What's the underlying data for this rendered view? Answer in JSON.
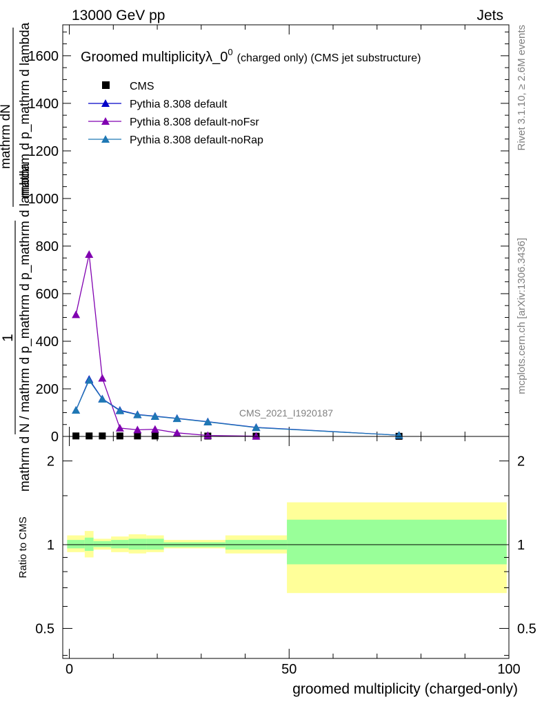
{
  "header": {
    "left": "13000 GeV pp",
    "right": "Jets"
  },
  "side_text": {
    "rivet": "Rivet 3.1.10, ≥ 2.6M events",
    "mcplots": "mcplots.cern.ch [arXiv:1306.3436]"
  },
  "chart_data": [
    {
      "type": "line",
      "title_main": "Groomed multiplicityλ_0",
      "title_sup": "0",
      "title_tail": "(charged only) (CMS jet substructure)",
      "ylabel_top": "1",
      "ylabel_frac_num": "mathrm dN",
      "ylabel_frac_den": "mathrm d p_mathrm d lambda",
      "ylabel_bottom": "mathrm d N / mathrm d p_mathrm d p_mathrm d lambda",
      "watermark": "CMS_2021_I1920187",
      "xlim": [
        -1.5,
        100
      ],
      "ylim": [
        0,
        1730
      ],
      "yticks": [
        0,
        200,
        400,
        600,
        800,
        1000,
        1200,
        1400,
        1600
      ],
      "yticklabels": [
        "0",
        "200",
        "400",
        "600",
        "800",
        "1000",
        "1200",
        "1400",
        "1600"
      ],
      "legend_position": "top-left",
      "series": [
        {
          "name": "CMS",
          "color": "#000000",
          "marker": "square",
          "x": [
            1.5,
            4.5,
            7.5,
            11.5,
            15.5,
            19.5,
            31.5,
            42.5,
            75
          ],
          "y": [
            2,
            2,
            2,
            2,
            2,
            2,
            1.5,
            1,
            0.5
          ]
        },
        {
          "name": "Pythia 8.308 default",
          "color": "#0000c8",
          "marker": "triangle",
          "x": [
            1.5,
            4.5,
            7.5,
            11.5,
            15.5,
            19.5,
            24.5,
            31.5,
            42.5,
            75
          ],
          "y": [
            110,
            240,
            158,
            110,
            92,
            85,
            76,
            62,
            38,
            5
          ]
        },
        {
          "name": "Pythia 8.308 default-noFsr",
          "color": "#8000b0",
          "marker": "triangle",
          "x": [
            1.5,
            4.5,
            7.5,
            11.5,
            15.5,
            19.5,
            24.5,
            31.5,
            42.5
          ],
          "y": [
            512,
            765,
            245,
            35,
            28,
            30,
            15,
            4,
            1
          ]
        },
        {
          "name": "Pythia 8.308 default-noRap",
          "color": "#1f78b4",
          "marker": "triangle",
          "x": [
            1.5,
            4.5,
            7.5,
            11.5,
            15.5,
            19.5,
            24.5,
            31.5,
            42.5,
            75
          ],
          "y": [
            110,
            236,
            157,
            108,
            91,
            84,
            75,
            61,
            37,
            5
          ]
        }
      ]
    },
    {
      "type": "area",
      "ylabel": "Ratio to CMS",
      "xlabel": "groomed multiplicity (charged-only)",
      "xlim": [
        -1.5,
        100
      ],
      "ylim": [
        0.39,
        2.45
      ],
      "log_y": true,
      "yticks": [
        0.5,
        1,
        2
      ],
      "yticklabels": [
        "0.5",
        "1",
        "2"
      ],
      "xticks": [
        0,
        50,
        100
      ],
      "xticklabels": [
        "0",
        "50",
        "100"
      ],
      "reference_line": 1,
      "bands": [
        {
          "x0": -0.5,
          "x1": 3.5,
          "inner": [
            0.97,
            1.04
          ],
          "outer": [
            0.94,
            1.08
          ]
        },
        {
          "x0": 3.5,
          "x1": 5.5,
          "inner": [
            0.95,
            1.06
          ],
          "outer": [
            0.9,
            1.12
          ]
        },
        {
          "x0": 5.5,
          "x1": 9.5,
          "inner": [
            0.98,
            1.03
          ],
          "outer": [
            0.96,
            1.05
          ]
        },
        {
          "x0": 9.5,
          "x1": 13.5,
          "inner": [
            0.97,
            1.04
          ],
          "outer": [
            0.94,
            1.07
          ]
        },
        {
          "x0": 13.5,
          "x1": 17.5,
          "inner": [
            0.96,
            1.05
          ],
          "outer": [
            0.93,
            1.09
          ]
        },
        {
          "x0": 17.5,
          "x1": 21.5,
          "inner": [
            0.96,
            1.05
          ],
          "outer": [
            0.94,
            1.08
          ]
        },
        {
          "x0": 21.5,
          "x1": 35.5,
          "inner": [
            0.98,
            1.02
          ],
          "outer": [
            0.97,
            1.04
          ]
        },
        {
          "x0": 35.5,
          "x1": 49.5,
          "inner": [
            0.96,
            1.04
          ],
          "outer": [
            0.93,
            1.08
          ]
        },
        {
          "x0": 49.5,
          "x1": 99.5,
          "inner": [
            0.85,
            1.23
          ],
          "outer": [
            0.67,
            1.42
          ]
        }
      ],
      "inner_color": "#99ff99",
      "outer_color": "#ffff99"
    }
  ]
}
